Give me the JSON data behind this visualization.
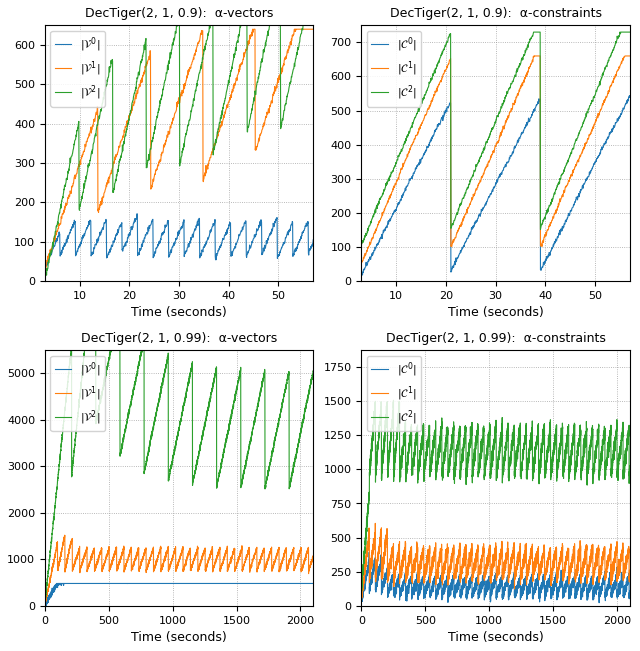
{
  "panels": [
    {
      "title": "DecTiger(2, 1, 0.9):  α-vectors",
      "xlabel": "Time (seconds)",
      "legend": [
        "|$\\mathit{V}^0$|",
        "|$\\mathit{V}^1$|",
        "|$\\mathit{V}^2$|"
      ],
      "colors": [
        "#1f77b4",
        "#ff7f0e",
        "#2ca02c"
      ],
      "xlim": [
        3,
        57
      ],
      "ylim": [
        0,
        650
      ],
      "xticks": [
        10,
        20,
        30,
        40,
        50
      ],
      "yticks": [
        0,
        100,
        200,
        300,
        400,
        500,
        600
      ],
      "grid": "dotted"
    },
    {
      "title": "DecTiger(2, 1, 0.9):  α-constraints",
      "xlabel": "Time (seconds)",
      "legend": [
        "|$\\mathit{C}^0$|",
        "|$\\mathit{C}^1$|",
        "|$\\mathit{C}^2$|"
      ],
      "colors": [
        "#1f77b4",
        "#ff7f0e",
        "#2ca02c"
      ],
      "xlim": [
        3,
        57
      ],
      "ylim": [
        0,
        750
      ],
      "xticks": [
        10,
        20,
        30,
        40,
        50
      ],
      "yticks": [
        0,
        100,
        200,
        300,
        400,
        500,
        600,
        700
      ],
      "grid": "dotted"
    },
    {
      "title": "DecTiger(2, 1, 0.99):  α-vectors",
      "xlabel": "Time (seconds)",
      "legend": [
        "|$\\mathit{V}^0$|",
        "|$\\mathit{V}^1$|",
        "|$\\mathit{V}^2$|"
      ],
      "colors": [
        "#1f77b4",
        "#ff7f0e",
        "#2ca02c"
      ],
      "xlim": [
        0,
        2100
      ],
      "ylim": [
        0,
        5500
      ],
      "xticks": [
        0,
        500,
        1000,
        1500,
        2000
      ],
      "yticks": [
        0,
        1000,
        2000,
        3000,
        4000,
        5000
      ],
      "grid": "dotted"
    },
    {
      "title": "DecTiger(2, 1, 0.99):  α-constraints",
      "xlabel": "Time (seconds)",
      "legend": [
        "|$\\mathit{C}^0$|",
        "|$\\mathit{C}^1$|",
        "|$\\mathit{C}^2$|"
      ],
      "colors": [
        "#1f77b4",
        "#ff7f0e",
        "#2ca02c"
      ],
      "xlim": [
        0,
        2100
      ],
      "ylim": [
        0,
        1875
      ],
      "xticks": [
        0,
        500,
        1000,
        1500,
        2000
      ],
      "yticks": [
        0,
        250,
        500,
        750,
        1000,
        1250,
        1500,
        1750
      ],
      "grid": "dotted"
    }
  ],
  "figsize": [
    6.4,
    6.51
  ],
  "dpi": 100,
  "line_width": 0.8,
  "tick_fontsize": 8,
  "label_fontsize": 9,
  "title_fontsize": 9,
  "legend_fontsize": 8
}
